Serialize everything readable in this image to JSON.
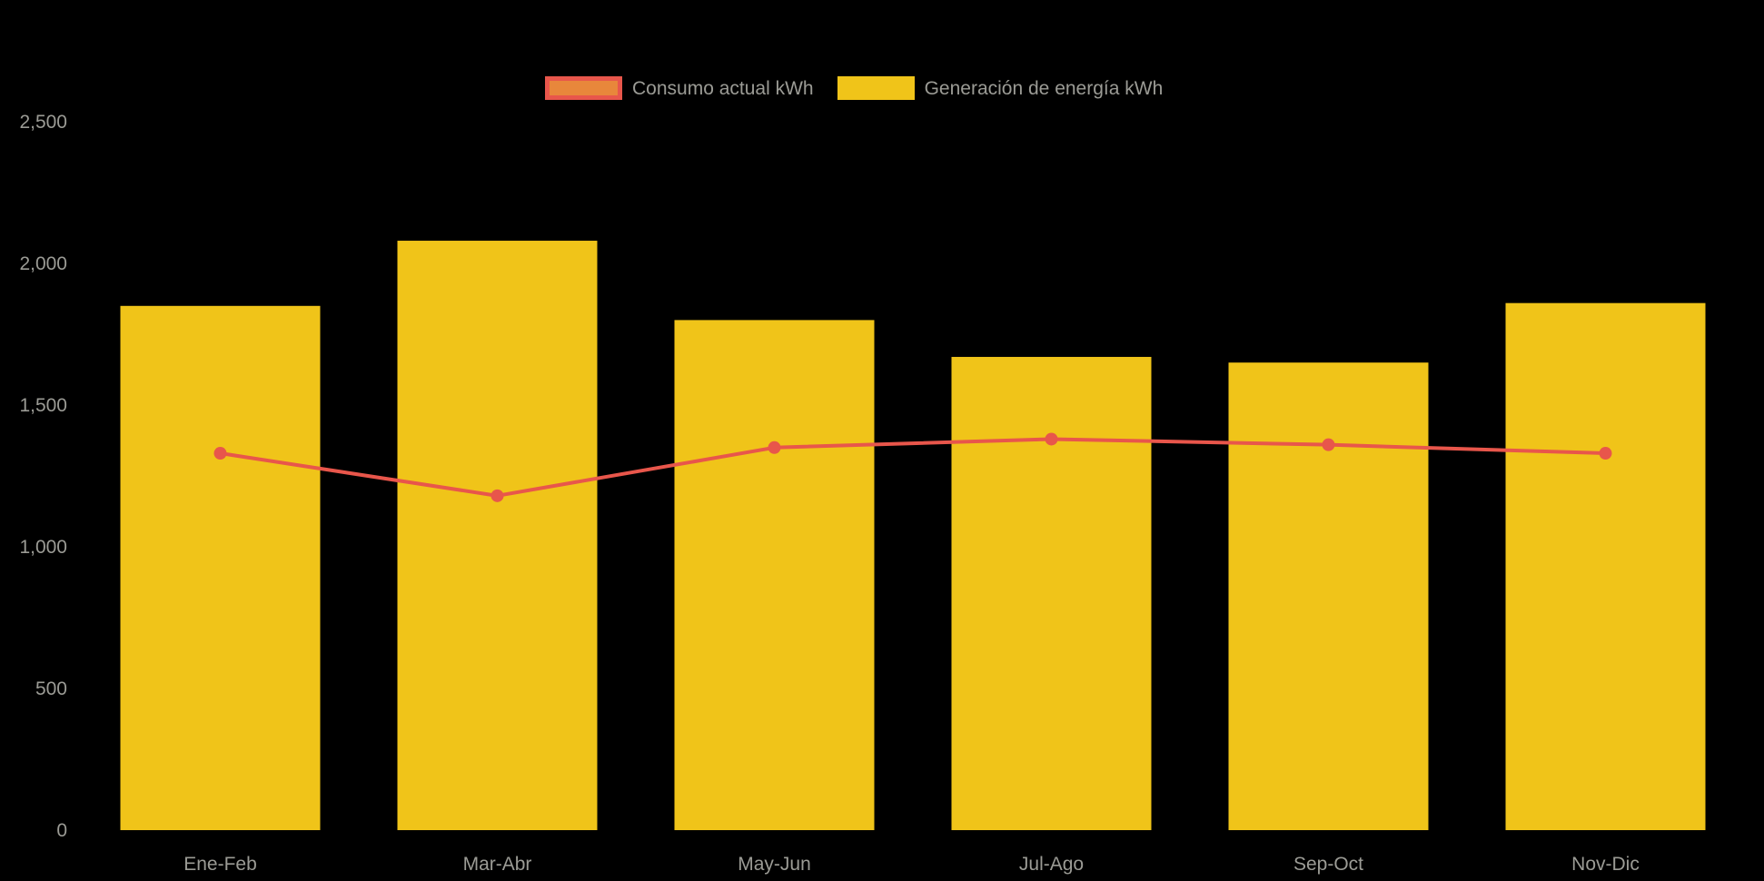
{
  "chart_data": {
    "type": "bar",
    "subtype": "bar-with-line-overlay",
    "title": "",
    "categories": [
      "Ene-Feb",
      "Mar-Abr",
      "May-Jun",
      "Jul-Ago",
      "Sep-Oct",
      "Nov-Dic"
    ],
    "series": [
      {
        "name": "Consumo actual kWh",
        "type": "line",
        "color": "#E8564B",
        "values": [
          1330,
          1180,
          1350,
          1380,
          1360,
          1330
        ]
      },
      {
        "name": "Generación de energía kWh",
        "type": "bar",
        "color": "#F0C419",
        "values": [
          1850,
          2080,
          1800,
          1670,
          1650,
          1860
        ]
      }
    ],
    "ylim": [
      0,
      2500
    ],
    "yticks": [
      0,
      500,
      1000,
      1500,
      2000,
      2500
    ],
    "ytick_labels": [
      "0",
      "500",
      "1,000",
      "1,500",
      "2,000",
      "2,500"
    ],
    "xlabel": "",
    "ylabel": "",
    "grid": false,
    "legend_position": "top-center",
    "background_color": "#000000",
    "text_color": "#9B9B95",
    "legend": {
      "consumo_swatch_fill": "#E8873B",
      "consumo_swatch_border": "#E8564B",
      "generacion_swatch_fill": "#F0C419"
    }
  }
}
